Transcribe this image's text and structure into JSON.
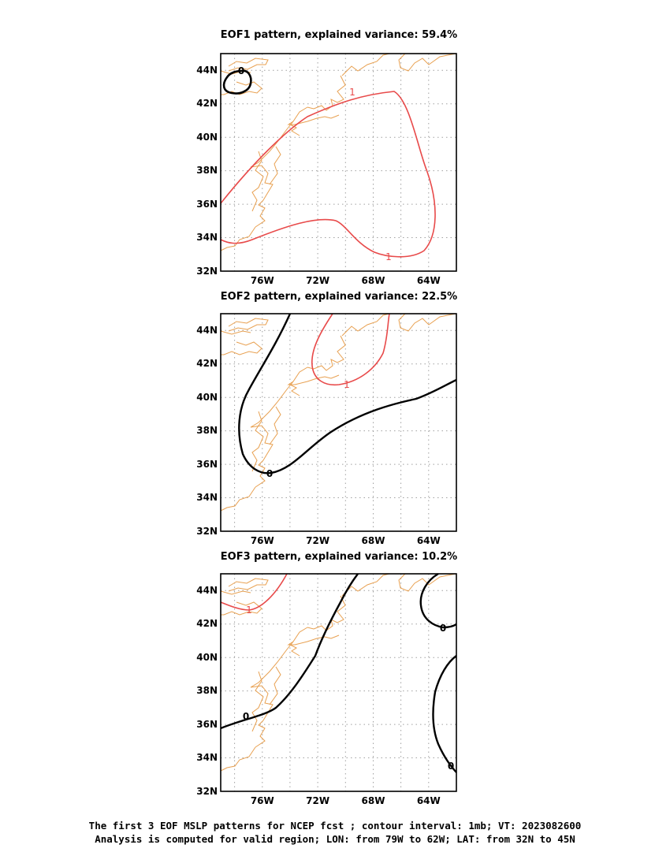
{
  "panels": [
    {
      "title": "EOF1 pattern, explained variance: 59.4%",
      "lat_ticks": [
        "32N",
        "34N",
        "36N",
        "38N",
        "40N",
        "42N",
        "44N"
      ],
      "lon_ticks": [
        "76W",
        "72W",
        "68W",
        "64W"
      ],
      "contours": [
        {
          "label": "1",
          "color": "#e84a4a"
        },
        {
          "label": "0",
          "color": "#000000"
        }
      ]
    },
    {
      "title": "EOF2 pattern, explained variance: 22.5%",
      "lat_ticks": [
        "32N",
        "34N",
        "36N",
        "38N",
        "40N",
        "42N",
        "44N"
      ],
      "lon_ticks": [
        "76W",
        "72W",
        "68W",
        "64W"
      ],
      "contours": [
        {
          "label": "0",
          "color": "#000000"
        },
        {
          "label": "1",
          "color": "#e84a4a"
        }
      ]
    },
    {
      "title": "EOF3 pattern, explained variance: 10.2%",
      "lat_ticks": [
        "32N",
        "34N",
        "36N",
        "38N",
        "40N",
        "42N",
        "44N"
      ],
      "lon_ticks": [
        "76W",
        "72W",
        "68W",
        "64W"
      ],
      "contours": [
        {
          "label": "0",
          "color": "#000000"
        },
        {
          "label": "1",
          "color": "#e84a4a"
        },
        {
          "label": "0",
          "color": "#000000"
        },
        {
          "label": "0",
          "color": "#000000"
        }
      ]
    }
  ],
  "colors": {
    "coastline": "#e8a050",
    "positive_contour": "#e84a4a",
    "zero_contour": "#000000",
    "grid": "#a0a0a0"
  },
  "caption": {
    "line1": "The first 3 EOF MSLP patterns for NCEP fcst ; contour interval: 1mb; VT: 2023082600",
    "line2": "Analysis is computed for valid region; LON: from 79W to 62W; LAT: from 32N to 45N"
  }
}
